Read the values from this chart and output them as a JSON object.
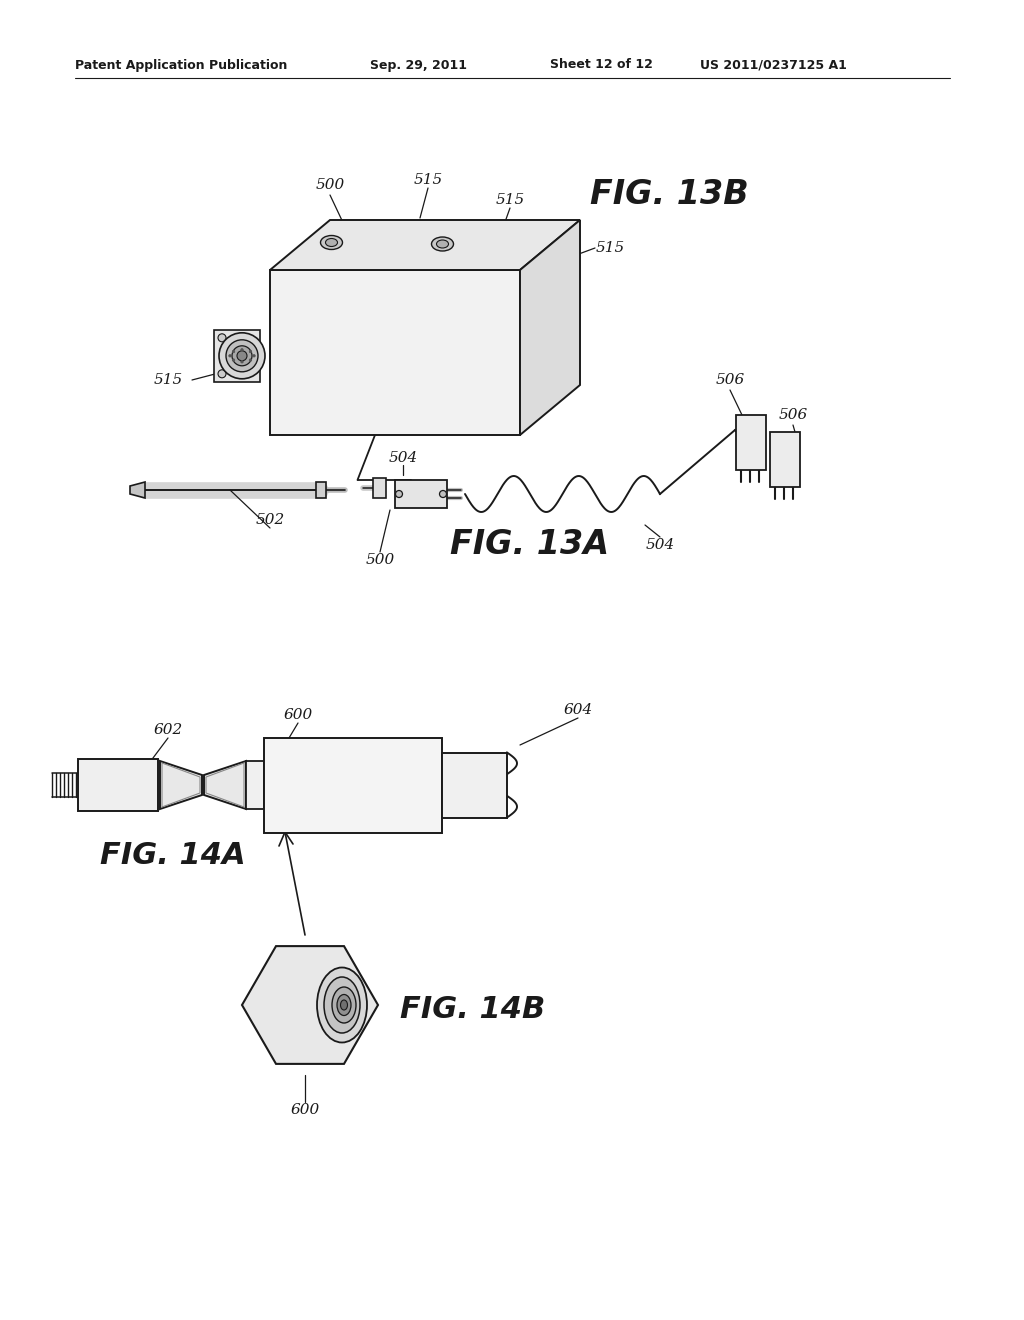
{
  "background_color": "#ffffff",
  "header_text": "Patent Application Publication",
  "header_date": "Sep. 29, 2011",
  "header_sheet": "Sheet 12 of 12",
  "header_patent": "US 2011/0237125 A1",
  "fig13b_label": "FIG. 13B",
  "fig13a_label": "FIG. 13A",
  "fig14a_label": "FIG. 14A",
  "fig14b_label": "FIG. 14B",
  "line_color": "#1a1a1a",
  "text_color": "#1a1a1a"
}
